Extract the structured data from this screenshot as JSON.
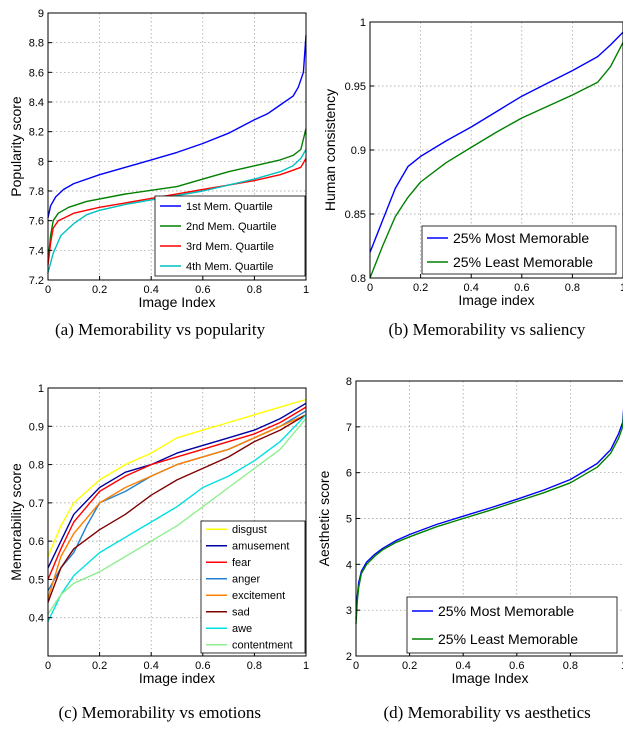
{
  "chart_data": [
    {
      "panel": "a",
      "type": "line",
      "caption": "(a)  Memorability vs popularity",
      "xlabel": "Image Index",
      "ylabel": "Popularity score",
      "xlim": [
        0,
        1
      ],
      "ylim": [
        7.2,
        9
      ],
      "xticks": [
        0,
        0.2,
        0.4,
        0.6,
        0.8,
        1
      ],
      "xtick_labels": [
        "0",
        "0.2",
        "0.4",
        "0.6",
        "0.8",
        "1"
      ],
      "yticks": [
        7.2,
        7.4,
        7.6,
        7.8,
        8,
        8.2,
        8.4,
        8.6,
        8.8,
        9
      ],
      "ytick_labels": [
        "7.2",
        "7.4",
        "7.6",
        "7.8",
        "8",
        "8.2",
        "8.4",
        "8.6",
        "8.8",
        "9"
      ],
      "grid": true,
      "legend_position": "bottom-right",
      "series": [
        {
          "name": "1st Mem. Quartile",
          "color": "#0000ff",
          "x": [
            0,
            0.01,
            0.03,
            0.06,
            0.1,
            0.2,
            0.3,
            0.4,
            0.5,
            0.6,
            0.7,
            0.8,
            0.85,
            0.9,
            0.95,
            0.97,
            0.99,
            1.0
          ],
          "y": [
            7.62,
            7.7,
            7.76,
            7.81,
            7.85,
            7.91,
            7.96,
            8.01,
            8.06,
            8.12,
            8.19,
            8.28,
            8.32,
            8.38,
            8.44,
            8.5,
            8.6,
            8.85
          ]
        },
        {
          "name": "2nd Mem. Quartile",
          "color": "#008000",
          "x": [
            0,
            0.01,
            0.02,
            0.04,
            0.08,
            0.15,
            0.3,
            0.5,
            0.6,
            0.7,
            0.8,
            0.9,
            0.95,
            0.98,
            1.0
          ],
          "y": [
            7.32,
            7.5,
            7.6,
            7.65,
            7.69,
            7.73,
            7.78,
            7.83,
            7.88,
            7.93,
            7.97,
            8.01,
            8.04,
            8.08,
            8.22
          ]
        },
        {
          "name": "3rd Mem. Quartile",
          "color": "#ff0000",
          "x": [
            0,
            0.01,
            0.02,
            0.04,
            0.1,
            0.2,
            0.3,
            0.4,
            0.5,
            0.6,
            0.7,
            0.8,
            0.9,
            0.95,
            0.98,
            1.0
          ],
          "y": [
            7.3,
            7.45,
            7.55,
            7.6,
            7.65,
            7.69,
            7.72,
            7.75,
            7.78,
            7.81,
            7.84,
            7.87,
            7.91,
            7.94,
            7.96,
            8.02
          ]
        },
        {
          "name": "4th Mem. Quartile",
          "color": "#00c0c0",
          "x": [
            0,
            0.02,
            0.05,
            0.1,
            0.15,
            0.2,
            0.3,
            0.4,
            0.5,
            0.6,
            0.7,
            0.8,
            0.9,
            0.95,
            0.98,
            1.0
          ],
          "y": [
            7.25,
            7.38,
            7.5,
            7.58,
            7.64,
            7.67,
            7.71,
            7.74,
            7.77,
            7.8,
            7.84,
            7.88,
            7.93,
            7.97,
            8.02,
            8.08
          ]
        }
      ]
    },
    {
      "panel": "b",
      "type": "line",
      "caption": "(b)  Memorability vs saliency",
      "xlabel": "Image index",
      "ylabel": "Human consistency",
      "xlim": [
        0,
        1
      ],
      "ylim": [
        0.8,
        1
      ],
      "xticks": [
        0,
        0.2,
        0.4,
        0.6,
        0.8,
        1
      ],
      "xtick_labels": [
        "0",
        "0.2",
        "0.4",
        "0.6",
        "0.8",
        "1"
      ],
      "yticks": [
        0.8,
        0.85,
        0.9,
        0.95,
        1
      ],
      "ytick_labels": [
        "0.8",
        "0.85",
        "0.9",
        "0.95",
        "1"
      ],
      "grid": true,
      "legend_position": "bottom-right",
      "series": [
        {
          "name": "25% Most Memorable",
          "color": "#0000ff",
          "x": [
            0,
            0.05,
            0.1,
            0.15,
            0.2,
            0.3,
            0.4,
            0.5,
            0.6,
            0.7,
            0.8,
            0.9,
            0.95,
            1.0
          ],
          "y": [
            0.82,
            0.845,
            0.87,
            0.887,
            0.895,
            0.907,
            0.918,
            0.93,
            0.942,
            0.952,
            0.962,
            0.973,
            0.982,
            0.992
          ]
        },
        {
          "name": "25% Least Memorable",
          "color": "#008000",
          "x": [
            0,
            0.05,
            0.1,
            0.15,
            0.2,
            0.3,
            0.4,
            0.5,
            0.6,
            0.7,
            0.8,
            0.9,
            0.95,
            1.0
          ],
          "y": [
            0.8,
            0.825,
            0.848,
            0.863,
            0.875,
            0.89,
            0.902,
            0.914,
            0.925,
            0.934,
            0.943,
            0.953,
            0.965,
            0.984
          ]
        }
      ]
    },
    {
      "panel": "c",
      "type": "line",
      "caption": "(c)  Memorability vs emotions",
      "xlabel": "Image index",
      "ylabel": "Memorability score",
      "xlim": [
        0,
        1
      ],
      "ylim": [
        0.3,
        1
      ],
      "xticks": [
        0,
        0.2,
        0.4,
        0.6,
        0.8,
        1
      ],
      "xtick_labels": [
        "0",
        "0.2",
        "0.4",
        "0.6",
        "0.8",
        "1"
      ],
      "yticks": [
        0.4,
        0.5,
        0.6,
        0.7,
        0.8,
        0.9,
        1
      ],
      "ytick_labels": [
        "0.4",
        "0.5",
        "0.6",
        "0.7",
        "0.8",
        "0.9",
        "1"
      ],
      "grid": true,
      "legend_position": "bottom-right",
      "series": [
        {
          "name": "disgust",
          "color": "#ffff00",
          "x": [
            0,
            0.05,
            0.1,
            0.2,
            0.3,
            0.4,
            0.5,
            0.6,
            0.7,
            0.8,
            0.9,
            1.0
          ],
          "y": [
            0.56,
            0.64,
            0.7,
            0.76,
            0.8,
            0.83,
            0.87,
            0.89,
            0.91,
            0.93,
            0.95,
            0.97
          ]
        },
        {
          "name": "amusement",
          "color": "#0000a0",
          "x": [
            0,
            0.05,
            0.1,
            0.2,
            0.3,
            0.4,
            0.5,
            0.6,
            0.7,
            0.8,
            0.9,
            1.0
          ],
          "y": [
            0.53,
            0.6,
            0.67,
            0.74,
            0.78,
            0.8,
            0.83,
            0.85,
            0.87,
            0.89,
            0.92,
            0.96
          ]
        },
        {
          "name": "fear",
          "color": "#ff0000",
          "x": [
            0,
            0.05,
            0.1,
            0.2,
            0.3,
            0.4,
            0.5,
            0.6,
            0.7,
            0.8,
            0.9,
            1.0
          ],
          "y": [
            0.5,
            0.58,
            0.65,
            0.73,
            0.77,
            0.8,
            0.82,
            0.84,
            0.86,
            0.88,
            0.91,
            0.95
          ]
        },
        {
          "name": "anger",
          "color": "#2080d0",
          "x": [
            0,
            0.05,
            0.1,
            0.15,
            0.2,
            0.3,
            0.4,
            0.5,
            0.6,
            0.7,
            0.8,
            0.9,
            1.0
          ],
          "y": [
            0.47,
            0.53,
            0.57,
            0.64,
            0.7,
            0.73,
            0.77,
            0.8,
            0.82,
            0.84,
            0.87,
            0.9,
            0.94
          ]
        },
        {
          "name": "excitement",
          "color": "#ff8000",
          "x": [
            0,
            0.05,
            0.1,
            0.2,
            0.3,
            0.4,
            0.5,
            0.6,
            0.7,
            0.8,
            0.9,
            1.0
          ],
          "y": [
            0.45,
            0.56,
            0.62,
            0.7,
            0.74,
            0.77,
            0.8,
            0.82,
            0.84,
            0.87,
            0.9,
            0.93
          ]
        },
        {
          "name": "sad",
          "color": "#800000",
          "x": [
            0,
            0.05,
            0.1,
            0.2,
            0.3,
            0.4,
            0.5,
            0.6,
            0.7,
            0.8,
            0.9,
            1.0
          ],
          "y": [
            0.44,
            0.53,
            0.58,
            0.63,
            0.67,
            0.72,
            0.76,
            0.79,
            0.82,
            0.86,
            0.89,
            0.93
          ]
        },
        {
          "name": "awe",
          "color": "#00e0e0",
          "x": [
            0,
            0.05,
            0.1,
            0.2,
            0.3,
            0.4,
            0.5,
            0.6,
            0.7,
            0.8,
            0.9,
            1.0
          ],
          "y": [
            0.39,
            0.46,
            0.51,
            0.57,
            0.61,
            0.65,
            0.69,
            0.74,
            0.77,
            0.81,
            0.86,
            0.93
          ]
        },
        {
          "name": "contentment",
          "color": "#90ee90",
          "x": [
            0,
            0.05,
            0.1,
            0.2,
            0.3,
            0.4,
            0.5,
            0.6,
            0.7,
            0.8,
            0.9,
            1.0
          ],
          "y": [
            0.41,
            0.46,
            0.49,
            0.52,
            0.56,
            0.6,
            0.64,
            0.69,
            0.74,
            0.79,
            0.84,
            0.92
          ]
        }
      ]
    },
    {
      "panel": "d",
      "type": "line",
      "caption": "(d)  Memorability vs aesthetics",
      "xlabel": "Image Index",
      "ylabel": "Aesthetic score",
      "xlim": [
        0,
        1
      ],
      "ylim": [
        2,
        8
      ],
      "xticks": [
        0,
        0.2,
        0.4,
        0.6,
        0.8,
        1
      ],
      "xtick_labels": [
        "0",
        "0.2",
        "0.4",
        "0.6",
        "0.8",
        "1"
      ],
      "yticks": [
        2,
        3,
        4,
        5,
        6,
        7,
        8
      ],
      "ytick_labels": [
        "2",
        "3",
        "4",
        "5",
        "6",
        "7",
        "8"
      ],
      "grid": true,
      "legend_position": "bottom-right",
      "series": [
        {
          "name": "25% Most Memorable",
          "color": "#0000ff",
          "x": [
            0,
            0.005,
            0.01,
            0.02,
            0.04,
            0.07,
            0.1,
            0.15,
            0.2,
            0.3,
            0.4,
            0.5,
            0.6,
            0.7,
            0.8,
            0.9,
            0.95,
            0.98,
            0.995,
            1.0
          ],
          "y": [
            2.8,
            3.3,
            3.6,
            3.85,
            4.05,
            4.22,
            4.35,
            4.52,
            4.65,
            4.87,
            5.05,
            5.23,
            5.42,
            5.62,
            5.85,
            6.2,
            6.5,
            6.85,
            7.1,
            7.5
          ]
        },
        {
          "name": "25% Least Memorable",
          "color": "#008000",
          "x": [
            0,
            0.005,
            0.01,
            0.02,
            0.04,
            0.07,
            0.1,
            0.15,
            0.2,
            0.3,
            0.4,
            0.5,
            0.6,
            0.7,
            0.8,
            0.9,
            0.95,
            0.98,
            0.995,
            1.0
          ],
          "y": [
            2.7,
            3.2,
            3.5,
            3.8,
            4.0,
            4.18,
            4.32,
            4.48,
            4.6,
            4.82,
            5.0,
            5.18,
            5.37,
            5.56,
            5.78,
            6.12,
            6.42,
            6.75,
            7.0,
            7.4
          ]
        }
      ]
    }
  ]
}
